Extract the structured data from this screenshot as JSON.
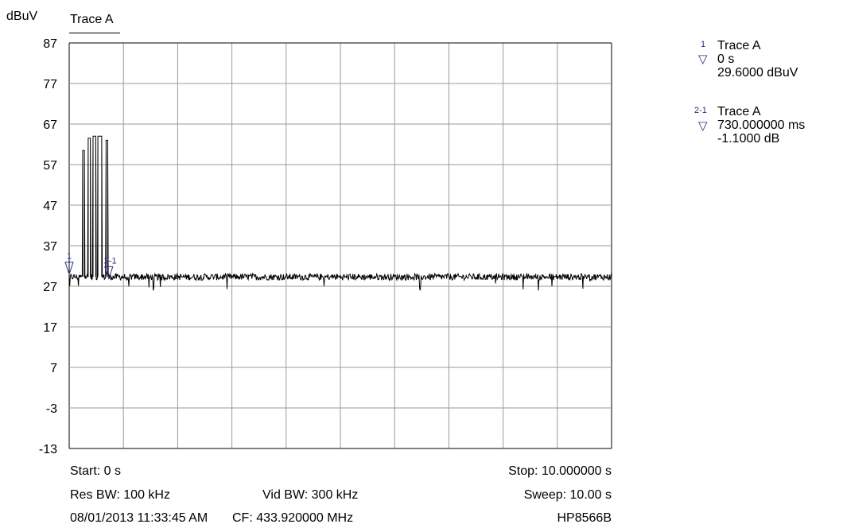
{
  "chart_data": {
    "type": "line",
    "title": "Trace A",
    "ylabel": "dBuV",
    "xlabel": "",
    "xlim": [
      0,
      10
    ],
    "ylim": [
      -13,
      87
    ],
    "yticks": [
      "87",
      "77",
      "67",
      "57",
      "47",
      "37",
      "27",
      "17",
      "7",
      "-3",
      "-13"
    ],
    "grid": true,
    "x_divisions": 10,
    "series": [
      {
        "name": "Trace A",
        "color": "#000000",
        "noise_floor": 29.3,
        "bursts": [
          {
            "x_start": 0.25,
            "x_end": 0.28,
            "value": 60.5
          },
          {
            "x_start": 0.35,
            "x_end": 0.39,
            "value": 63.5
          },
          {
            "x_start": 0.44,
            "x_end": 0.49,
            "value": 64.0
          },
          {
            "x_start": 0.53,
            "x_end": 0.6,
            "value": 64.0
          },
          {
            "x_start": 0.68,
            "x_end": 0.71,
            "value": 63.0
          }
        ]
      }
    ],
    "markers": [
      {
        "id": "1",
        "x": 0.0,
        "y": 29.6,
        "color": "#2a2a8a"
      },
      {
        "id": "2-1",
        "x": 0.73,
        "y": 28.5,
        "color": "#2a2a8a"
      }
    ]
  },
  "marker_table": [
    {
      "sup": "1",
      "trace": "Trace A",
      "line1": "0 s",
      "line2": "29.6000 dBuV"
    },
    {
      "sup": "2-1",
      "trace": "Trace A",
      "line1": "730.000000 ms",
      "line2": "-1.1000 dB"
    }
  ],
  "footer": {
    "start": "Start: 0 s",
    "stop": "Stop: 10.000000 s",
    "res_bw": "Res BW: 100 kHz",
    "vid_bw": "Vid BW: 300 kHz",
    "sweep": "Sweep: 10.00 s",
    "datetime": "08/01/2013 11:33:45 AM",
    "cf": "CF: 433.920000 MHz",
    "instrument": "HP8566B"
  }
}
